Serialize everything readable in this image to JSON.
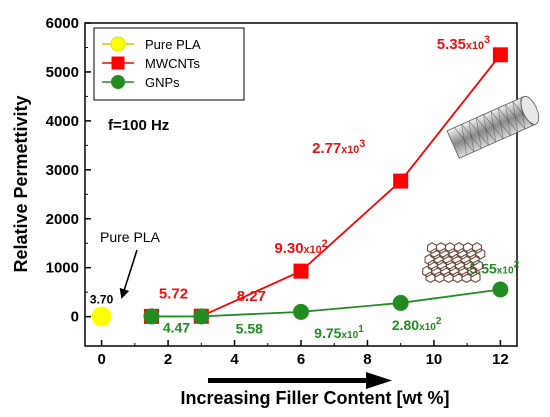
{
  "chart_data": {
    "type": "line",
    "x_label": "Increasing Filler Content [wt %]",
    "y_label": "Relative Permettivity",
    "xlim": [
      -0.5,
      12.5
    ],
    "ylim": [
      -600,
      6000
    ],
    "x_ticks": [
      0,
      2,
      4,
      6,
      8,
      10,
      12
    ],
    "y_ticks": [
      0,
      1000,
      2000,
      3000,
      4000,
      5000,
      6000
    ],
    "frequency_note": "f=100 Hz",
    "pointer_label": "Pure PLA",
    "legend": {
      "position": "top-left",
      "entries": [
        "Pure PLA",
        "MWCNTs",
        "GNPs"
      ]
    },
    "series": [
      {
        "name": "Pure PLA",
        "marker": "circle",
        "color": "#ffff00",
        "x": [
          0
        ],
        "y": [
          3.7
        ],
        "labels": [
          "3.70"
        ],
        "label_color": "#000000"
      },
      {
        "name": "MWCNTs",
        "marker": "square",
        "color": "#ff0000",
        "x": [
          1.5,
          3,
          6,
          9,
          12
        ],
        "y": [
          5.72,
          8.27,
          930,
          2770,
          5350
        ],
        "labels": [
          {
            "base": "5.72",
            "sup": ""
          },
          {
            "base": "8.27",
            "sup": ""
          },
          {
            "base": "9.30x10",
            "sup": "2"
          },
          {
            "base": "2.77x10",
            "sup": "3"
          },
          {
            "base": "5.35x10",
            "sup": "3"
          }
        ],
        "label_color": "#ee1111"
      },
      {
        "name": "GNPs",
        "marker": "circle",
        "color": "#228b22",
        "x": [
          1.5,
          3,
          6,
          9,
          12
        ],
        "y": [
          4.47,
          5.58,
          97.5,
          280,
          555
        ],
        "labels": [
          {
            "base": "4.47",
            "sup": ""
          },
          {
            "base": "5.58",
            "sup": ""
          },
          {
            "base": "9.75x10",
            "sup": "1"
          },
          {
            "base": "2.80x10",
            "sup": "2"
          },
          {
            "base": "5.55x10",
            "sup": "2"
          }
        ],
        "label_color": "#228b22"
      }
    ]
  }
}
